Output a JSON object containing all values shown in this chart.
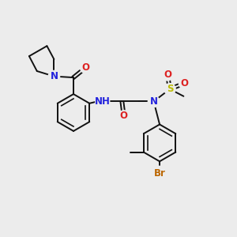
{
  "bg_color": "#ececec",
  "bond_color": "#111111",
  "bond_lw": 1.4,
  "dbl_off": 0.07,
  "colors": {
    "N": "#2222dd",
    "O": "#dd2222",
    "S": "#bbbb00",
    "Br": "#bb6600",
    "C": "#111111"
  },
  "fs": 8.5,
  "xlim": [
    0,
    10
  ],
  "ylim": [
    0,
    10
  ],
  "figsize": [
    3.0,
    3.0
  ],
  "dpi": 100
}
